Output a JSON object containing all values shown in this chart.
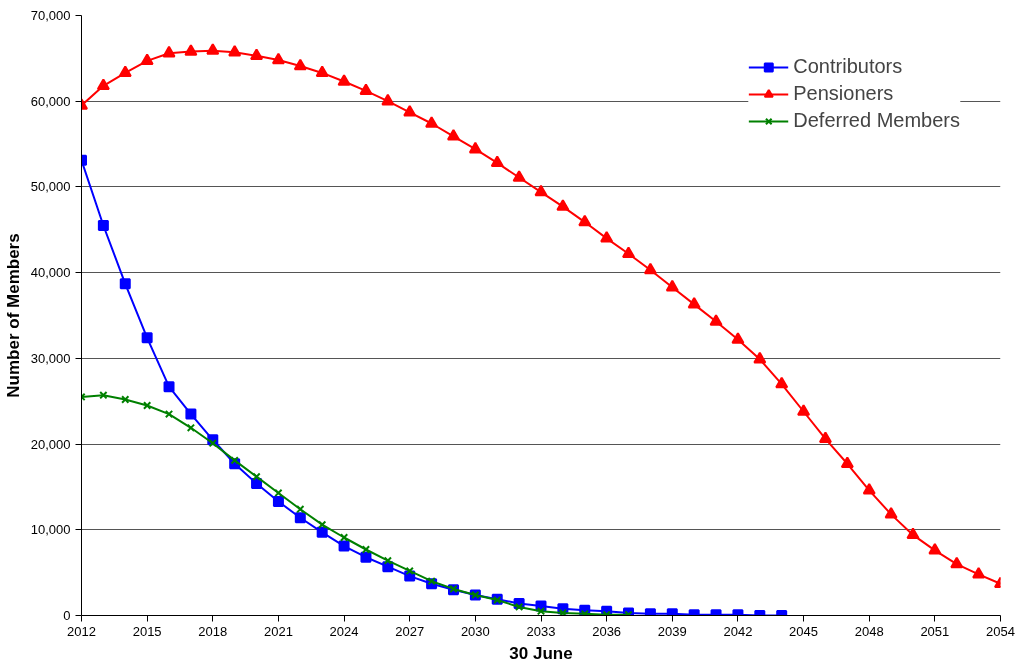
{
  "chart_data": {
    "type": "line",
    "xlabel": "30 June",
    "ylabel": "Number of Members",
    "xlim": [
      2012,
      2054
    ],
    "xticks": [
      2012,
      2015,
      2018,
      2021,
      2024,
      2027,
      2030,
      2033,
      2036,
      2039,
      2042,
      2045,
      2048,
      2051,
      2054
    ],
    "ylim": [
      0,
      70000
    ],
    "yticks": [
      0,
      {
        "value": 10000,
        "label": "10,000"
      },
      {
        "value": 20000,
        "label": "20,000"
      },
      {
        "value": 30000,
        "label": "30,000"
      },
      {
        "value": 40000,
        "label": "40,000"
      },
      {
        "value": 50000,
        "label": "50,000"
      },
      {
        "value": 60000,
        "label": "60,000"
      },
      {
        "value": 70000,
        "label": "70,000"
      }
    ],
    "grid": "y",
    "legend": "top right",
    "series": [
      {
        "name": "Contributors",
        "color": "#0000ff",
        "marker": "square",
        "x": [
          2012,
          2013,
          2014,
          2015,
          2016,
          2017,
          2018,
          2019,
          2020,
          2021,
          2022,
          2023,
          2024,
          2025,
          2026,
          2027,
          2028,
          2029,
          2030,
          2031,
          2032,
          2033,
          2034,
          2035,
          2036,
          2037,
          2038,
          2039,
          2040,
          2041,
          2042,
          2043,
          2044
        ],
        "values": [
          53100,
          45500,
          38700,
          32400,
          26700,
          23500,
          20500,
          17700,
          15400,
          13300,
          11400,
          9700,
          8100,
          6800,
          5700,
          4600,
          3700,
          3000,
          2400,
          1900,
          1400,
          1100,
          800,
          600,
          500,
          300,
          200,
          200,
          100,
          100,
          100,
          0,
          0
        ]
      },
      {
        "name": "Pensioners",
        "color": "#ff0000",
        "marker": "triangle",
        "x": [
          2012,
          2013,
          2014,
          2015,
          2016,
          2017,
          2018,
          2019,
          2020,
          2021,
          2022,
          2023,
          2024,
          2025,
          2026,
          2027,
          2028,
          2029,
          2030,
          2031,
          2032,
          2033,
          2034,
          2035,
          2036,
          2037,
          2038,
          2039,
          2040,
          2041,
          2042,
          2043,
          2044,
          2045,
          2046,
          2047,
          2048,
          2049,
          2050,
          2051,
          2052,
          2053,
          2054
        ],
        "values": [
          59500,
          61800,
          63300,
          64700,
          65600,
          65800,
          65900,
          65700,
          65300,
          64800,
          64100,
          63300,
          62300,
          61200,
          60000,
          58700,
          57400,
          55900,
          54400,
          52800,
          51100,
          49400,
          47700,
          45900,
          44000,
          42200,
          40300,
          38300,
          36300,
          34300,
          32200,
          29900,
          27000,
          23800,
          20600,
          17700,
          14600,
          11800,
          9400,
          7600,
          6000,
          4800,
          3700
        ]
      },
      {
        "name": "Deferred Members",
        "color": "#008000",
        "marker": "cross",
        "x": [
          2012,
          2013,
          2014,
          2015,
          2016,
          2017,
          2018,
          2019,
          2020,
          2021,
          2022,
          2023,
          2024,
          2025,
          2026,
          2027,
          2028,
          2029,
          2030,
          2031,
          2032,
          2033,
          2034,
          2035,
          2036,
          2037
        ],
        "values": [
          25500,
          25700,
          25200,
          24500,
          23500,
          21900,
          20100,
          18100,
          16200,
          14300,
          12400,
          10600,
          9100,
          7700,
          6400,
          5200,
          4000,
          3100,
          2400,
          1800,
          1000,
          500,
          300,
          200,
          100,
          100
        ]
      }
    ]
  }
}
